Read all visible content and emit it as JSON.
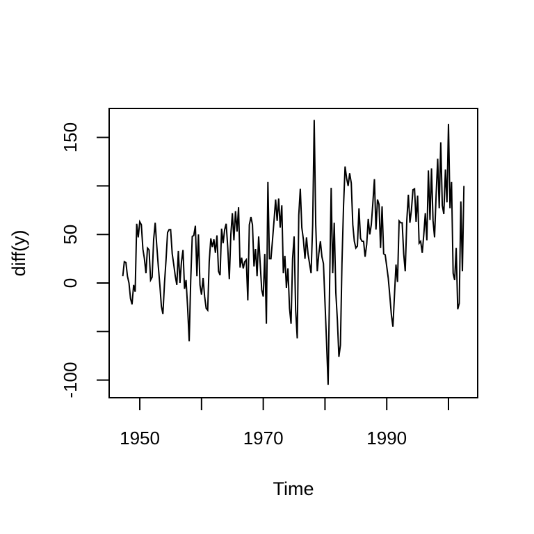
{
  "figure": {
    "background": "#ffffff",
    "foreground": "#000000"
  },
  "chart_data": {
    "type": "line",
    "title": "",
    "xlabel": "Time",
    "ylabel": "diff(y)",
    "line_color": "#000000",
    "grid": false,
    "legend_position": "none",
    "x_start": 1947.25,
    "x_step": 0.25,
    "values": [
      7,
      22,
      21,
      7,
      0,
      -16,
      -22,
      -2,
      -9,
      61,
      47,
      63,
      60,
      35,
      25,
      10,
      36,
      34,
      3,
      6,
      45,
      62,
      38,
      17,
      -2,
      -24,
      -32,
      0,
      24,
      52,
      55,
      55,
      30,
      19,
      7,
      -2,
      33,
      0,
      22,
      34,
      -6,
      3,
      -26,
      -60,
      3,
      48,
      49,
      59,
      7,
      50,
      -2,
      -12,
      5,
      -14,
      -26,
      -28,
      22,
      46,
      37,
      45,
      31,
      49,
      12,
      8,
      56,
      41,
      55,
      61,
      36,
      4,
      50,
      72,
      44,
      74,
      53,
      78,
      16,
      26,
      15,
      22,
      24,
      -18,
      60,
      68,
      60,
      17,
      35,
      7,
      48,
      20,
      -7,
      -14,
      30,
      -42,
      104,
      25,
      25,
      44,
      65,
      86,
      64,
      87,
      57,
      80,
      10,
      28,
      -5,
      15,
      -26,
      -42,
      25,
      48,
      -28,
      -57,
      70,
      97,
      57,
      45,
      25,
      47,
      30,
      20,
      10,
      60,
      168,
      60,
      12,
      30,
      43,
      27,
      20,
      -20,
      -60,
      -105,
      0,
      98,
      10,
      62,
      -10,
      -38,
      -76,
      -64,
      20,
      80,
      120,
      108,
      100,
      113,
      103,
      60,
      43,
      36,
      38,
      77,
      46,
      43,
      43,
      27,
      40,
      66,
      50,
      60,
      82,
      107,
      55,
      86,
      81,
      36,
      79,
      30,
      29,
      17,
      5,
      -13,
      -33,
      -45,
      -13,
      19,
      1,
      64,
      62,
      62,
      30,
      12,
      65,
      91,
      62,
      75,
      96,
      97,
      63,
      90,
      41,
      43,
      31,
      50,
      72,
      44,
      116,
      65,
      118,
      64,
      47,
      90,
      128,
      77,
      145,
      80,
      71,
      117,
      83,
      164,
      77,
      104,
      10,
      3,
      36,
      -27,
      -21,
      84,
      12,
      100
    ],
    "xlim": [
      1945.04,
      2004.73
    ],
    "ylim": [
      -118.2,
      179.8
    ],
    "x_ticks": [
      {
        "value": 1950,
        "label": "1950"
      },
      {
        "value": 1960,
        "label": ""
      },
      {
        "value": 1970,
        "label": "1970"
      },
      {
        "value": 1980,
        "label": ""
      },
      {
        "value": 1990,
        "label": "1990"
      },
      {
        "value": 2000,
        "label": ""
      }
    ],
    "y_ticks": [
      {
        "value": -100,
        "label": "-100"
      },
      {
        "value": -50,
        "label": ""
      },
      {
        "value": 0,
        "label": "0"
      },
      {
        "value": 50,
        "label": "50"
      },
      {
        "value": 100,
        "label": "100_hidden"
      },
      {
        "value": 150,
        "label": "150"
      }
    ],
    "y_tick_labels_shown": [
      "-100",
      "0",
      "50",
      "150"
    ],
    "x_tick_labels_shown": [
      "1950",
      "1970",
      "1990"
    ]
  }
}
